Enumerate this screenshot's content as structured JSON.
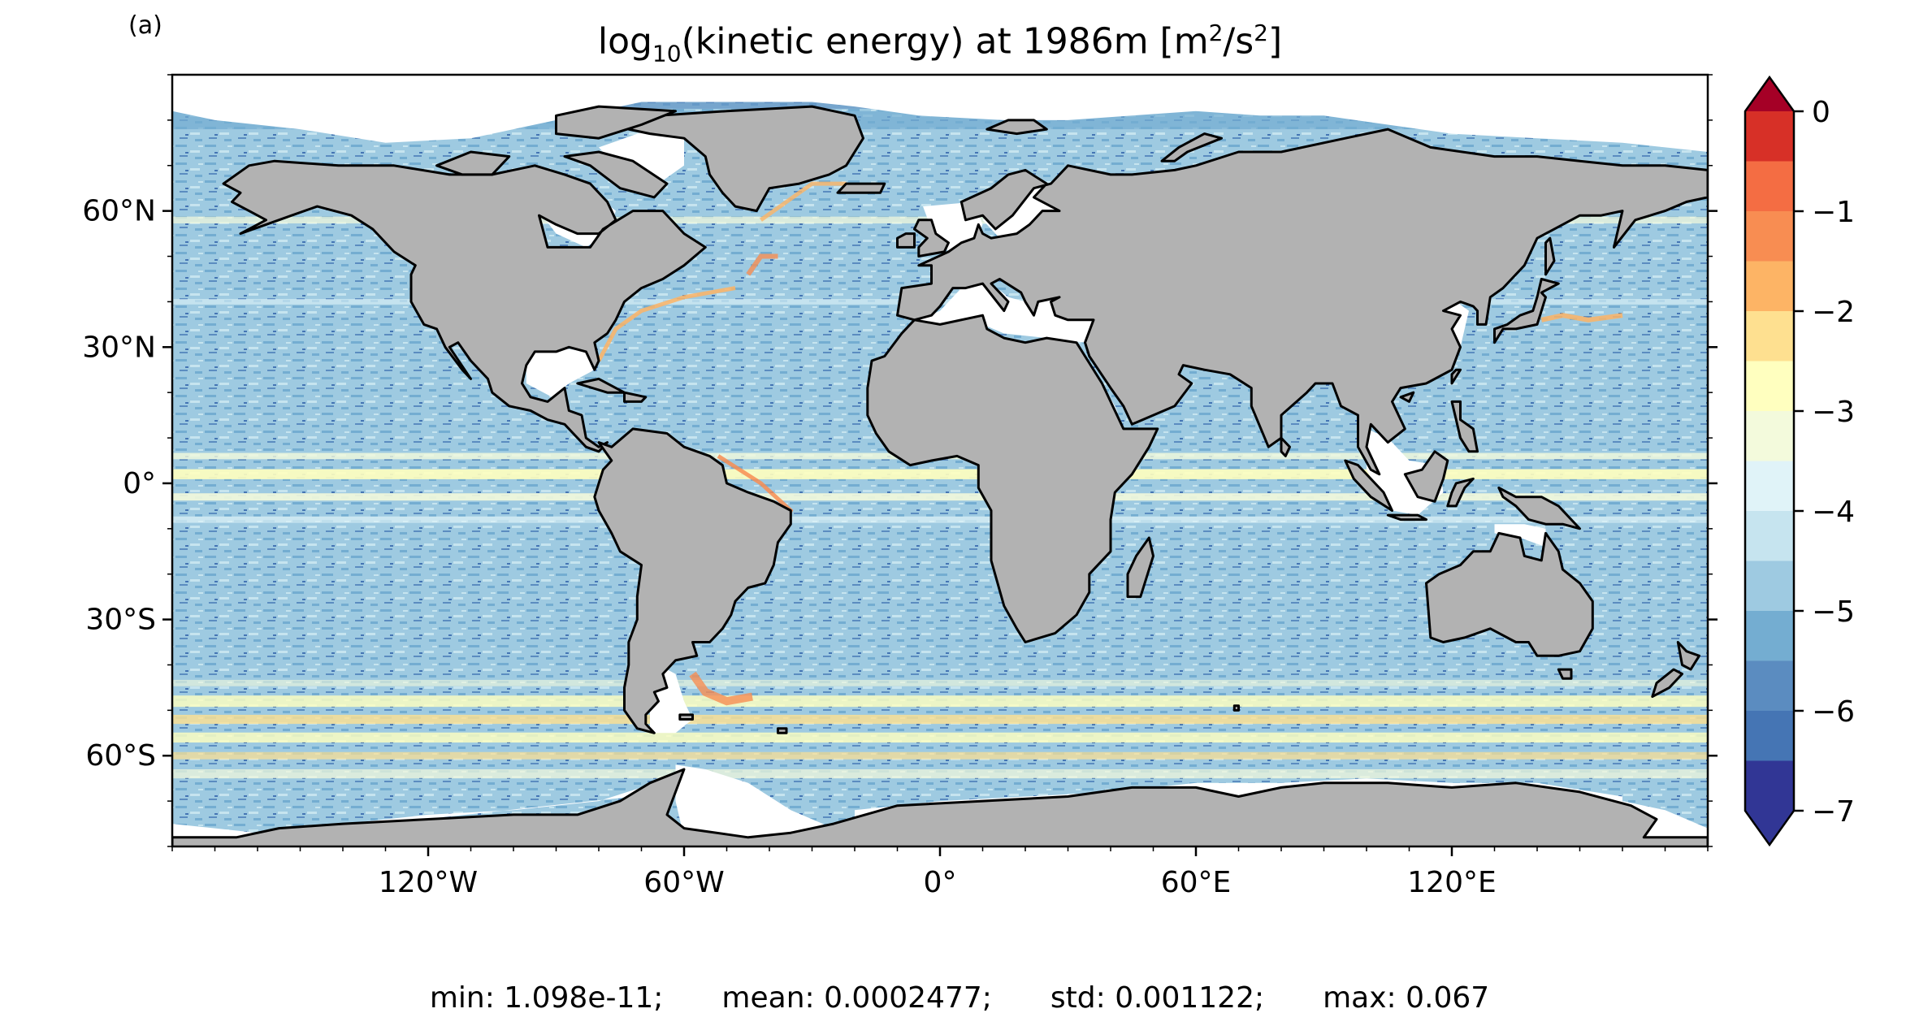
{
  "panel_label": "(a)",
  "title": {
    "prefix": "log",
    "subscript": "10",
    "middle": "(kinetic energy) at 1986m [m",
    "sup1": "2",
    "slash": "/s",
    "sup2": "2",
    "suffix": "]"
  },
  "map": {
    "projection": "PlateCarree",
    "lon_range": [
      -180,
      180
    ],
    "lat_range": [
      -80,
      90
    ],
    "land_color": "#b2b2b2",
    "ocean_missing_color": "#ffffff",
    "x_ticks": [
      {
        "lon": -120,
        "label": "120°W"
      },
      {
        "lon": -60,
        "label": "60°W"
      },
      {
        "lon": 0,
        "label": "0°"
      },
      {
        "lon": 60,
        "label": "60°E"
      },
      {
        "lon": 120,
        "label": "120°E"
      }
    ],
    "y_ticks": [
      {
        "lat": 60,
        "label": "60°N"
      },
      {
        "lat": 30,
        "label": "30°N"
      },
      {
        "lat": 0,
        "label": "0°"
      },
      {
        "lat": -30,
        "label": "30°S"
      },
      {
        "lat": -60,
        "label": "60°S"
      }
    ]
  },
  "colorbar": {
    "cmap": "RdYlBu_r",
    "range": [
      -7,
      0
    ],
    "extend": "both",
    "levels": [
      -7,
      -6.5,
      -6,
      -5.5,
      -5,
      -4.5,
      -4,
      -3.5,
      -3,
      -2.5,
      -2,
      -1.5,
      -1,
      -0.5,
      0
    ],
    "colors": [
      "#313695",
      "#4575b4",
      "#5b8cc0",
      "#74add1",
      "#9ecae1",
      "#c6e4ef",
      "#e0f3f8",
      "#f3fadc",
      "#ffffbf",
      "#fee090",
      "#fdb465",
      "#f88d52",
      "#f46d43",
      "#d73027",
      "#bd1c28"
    ],
    "under_color": "#313695",
    "over_color": "#a50026",
    "ticks": [
      {
        "value": 0,
        "label": "0"
      },
      {
        "value": -1,
        "label": "−1"
      },
      {
        "value": -2,
        "label": "−2"
      },
      {
        "value": -3,
        "label": "−3"
      },
      {
        "value": -4,
        "label": "−4"
      },
      {
        "value": -5,
        "label": "−5"
      },
      {
        "value": -6,
        "label": "−6"
      },
      {
        "value": -7,
        "label": "−7"
      }
    ]
  },
  "stats": {
    "min": "min: 1.098e-11;",
    "mean": "mean: 0.0002477;",
    "std": "std: 0.001122;",
    "max": "max: 0.067"
  }
}
